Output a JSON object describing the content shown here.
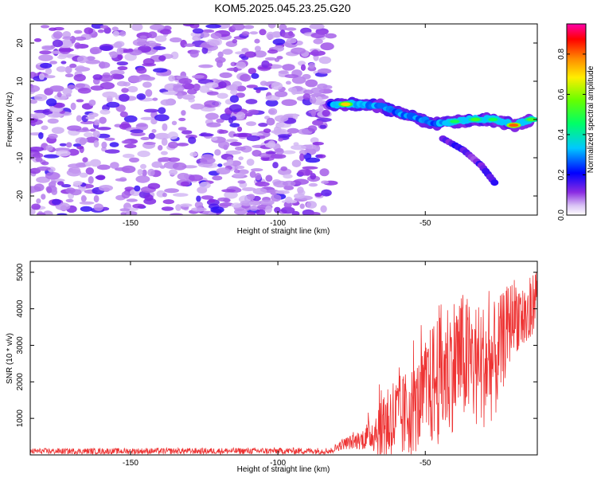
{
  "title": "KOM5.2025.045.23.25.G20",
  "chart_data": [
    {
      "type": "heatmap",
      "title": "KOM5.2025.045.23.25.G20",
      "xlabel": "Height of straight line (km)",
      "ylabel": "Frequency (Hz)",
      "xlim": [
        -184,
        -12
      ],
      "ylim": [
        -25,
        25
      ],
      "xticks": [
        -150,
        -100,
        -50
      ],
      "xtick_labels": [
        "-150",
        "-100",
        "-50"
      ],
      "yticks": [
        -20,
        -10,
        0,
        10,
        20
      ],
      "ytick_labels": [
        "-20",
        "-10",
        "0",
        "10",
        "20"
      ],
      "colorbar": {
        "label": "Normalized spectral amplitude",
        "range": [
          0.0,
          0.95
        ],
        "ticks": [
          0.0,
          0.2,
          0.4,
          0.6,
          0.8
        ],
        "tick_labels": [
          "0.0",
          "0.2",
          "0.4",
          "0.6",
          "0.8"
        ],
        "colormap": "rainbow: white/lavender (low) -> violet -> blue -> cyan -> green -> yellow -> orange -> red -> magenta (high)"
      },
      "features": {
        "noise_region_x": [
          -184,
          -82
        ],
        "signal_track": [
          {
            "x": -82,
            "y": 3.8,
            "amp": 0.3
          },
          {
            "x": -77,
            "y": 4.0,
            "amp": 0.75
          },
          {
            "x": -72,
            "y": 4.0,
            "amp": 0.35
          },
          {
            "x": -65,
            "y": 3.5,
            "amp": 0.3
          },
          {
            "x": -58,
            "y": 1.5,
            "amp": 0.3
          },
          {
            "x": -53,
            "y": 0.5,
            "amp": 0.3
          },
          {
            "x": -47,
            "y": -1.0,
            "amp": 0.35
          },
          {
            "x": -40,
            "y": -0.5,
            "amp": 0.5
          },
          {
            "x": -33,
            "y": 0.0,
            "amp": 0.55
          },
          {
            "x": -27,
            "y": 0.0,
            "amp": 0.5
          },
          {
            "x": -20,
            "y": -1.5,
            "amp": 0.85
          },
          {
            "x": -14,
            "y": 0.0,
            "amp": 0.55
          }
        ],
        "branch_track": [
          {
            "x": -44,
            "y": -5
          },
          {
            "x": -37,
            "y": -8
          },
          {
            "x": -31,
            "y": -12
          },
          {
            "x": -26,
            "y": -17
          }
        ]
      }
    },
    {
      "type": "line",
      "xlabel": "Height of straight line (km)",
      "ylabel": "SNR (10 * v/v)",
      "xlim": [
        -184,
        -12
      ],
      "ylim": [
        0,
        5300
      ],
      "xticks": [
        -150,
        -100,
        -50
      ],
      "xtick_labels": [
        "-150",
        "-100",
        "-50"
      ],
      "yticks": [
        1000,
        2000,
        3000,
        4000,
        5000
      ],
      "ytick_labels": [
        "1000",
        "2000",
        "3000",
        "4000",
        "5000"
      ],
      "color": "#e33",
      "envelope": [
        {
          "x": -184,
          "mean": 100,
          "amp": 80
        },
        {
          "x": -82,
          "mean": 110,
          "amp": 90
        },
        {
          "x": -78,
          "mean": 300,
          "amp": 150
        },
        {
          "x": -72,
          "mean": 400,
          "amp": 250
        },
        {
          "x": -68,
          "mean": 600,
          "amp": 500
        },
        {
          "x": -63,
          "mean": 900,
          "amp": 1300
        },
        {
          "x": -58,
          "mean": 1000,
          "amp": 1200
        },
        {
          "x": -52,
          "mean": 1400,
          "amp": 1300
        },
        {
          "x": -45,
          "mean": 2200,
          "amp": 2000
        },
        {
          "x": -38,
          "mean": 2700,
          "amp": 1800
        },
        {
          "x": -32,
          "mean": 2400,
          "amp": 1800
        },
        {
          "x": -26,
          "mean": 2600,
          "amp": 1600
        },
        {
          "x": -20,
          "mean": 3900,
          "amp": 1000
        },
        {
          "x": -15,
          "mean": 3700,
          "amp": 1100
        },
        {
          "x": -12,
          "mean": 4600,
          "amp": 600
        }
      ]
    }
  ]
}
